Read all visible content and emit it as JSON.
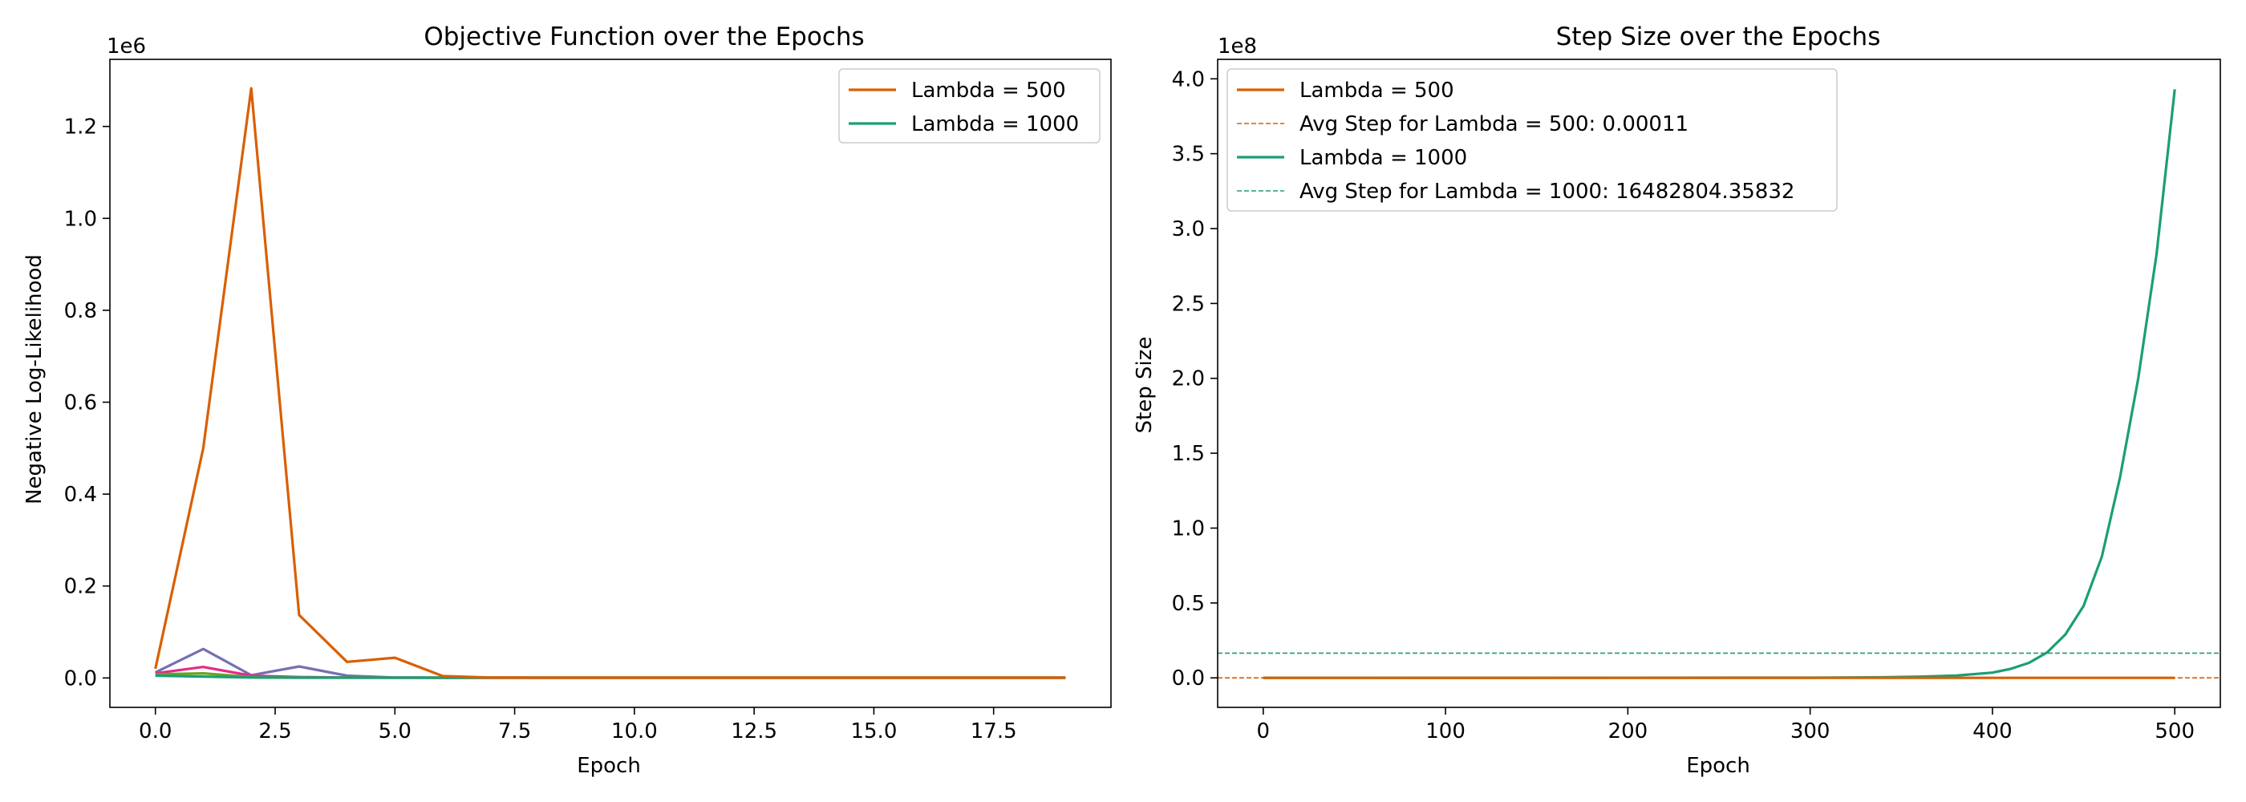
{
  "chart_data": [
    {
      "type": "line",
      "title": "Objective Function over the Epochs",
      "xlabel": "Epoch",
      "ylabel": "Negative Log-Likelihood",
      "xlim": [
        -0.95,
        19.95
      ],
      "ylim": [
        -64000,
        1346000
      ],
      "y_offset_label": "1e6",
      "xticks": [
        0,
        2.5,
        5,
        7.5,
        10,
        12.5,
        15,
        17.5
      ],
      "xtick_labels": [
        "0.0",
        "2.5",
        "5.0",
        "7.5",
        "10.0",
        "12.5",
        "15.0",
        "17.5"
      ],
      "yticks": [
        0,
        200000,
        400000,
        600000,
        800000,
        1000000,
        1200000
      ],
      "ytick_labels": [
        "0.0",
        "0.2",
        "0.4",
        "0.6",
        "0.8",
        "1.0",
        "1.2"
      ],
      "legend_position": "top-right",
      "x": [
        0,
        1,
        2,
        3,
        4,
        5,
        6,
        7,
        8,
        9,
        10,
        11,
        12,
        13,
        14,
        15,
        16,
        17,
        18,
        19
      ],
      "series": [
        {
          "name": "Lambda = 500",
          "color": "#d95f02",
          "in_legend": true,
          "values": [
            20000,
            500000,
            1283000,
            137000,
            35000,
            44000,
            4000,
            1000,
            500,
            500,
            500,
            500,
            500,
            500,
            500,
            500,
            500,
            500,
            500,
            500
          ]
        },
        {
          "name": "Lambda = 1000",
          "color": "#1b9e77",
          "in_legend": true,
          "values": [
            5000,
            3000,
            1000,
            500,
            500,
            500,
            500,
            500,
            500,
            500,
            500,
            500,
            500,
            500,
            500,
            500,
            500,
            500,
            500,
            500
          ]
        },
        {
          "color": "#66a61e",
          "in_legend": false,
          "values": [
            8000,
            10000,
            2000,
            1000,
            500,
            500,
            500,
            500,
            500,
            500,
            500,
            500,
            500,
            500,
            500,
            500,
            500,
            500,
            500,
            500
          ]
        },
        {
          "color": "#e7298a",
          "in_legend": false,
          "values": [
            10000,
            24000,
            5000,
            2000,
            1000,
            500,
            500,
            500,
            500,
            500,
            500,
            500,
            500,
            500,
            500,
            500,
            500,
            500,
            500,
            500
          ]
        },
        {
          "color": "#7570b3",
          "in_legend": false,
          "values": [
            12000,
            63000,
            6000,
            25000,
            5000,
            1000,
            500,
            500,
            500,
            500,
            500,
            500,
            500,
            500,
            500,
            500,
            500,
            500,
            500,
            500
          ]
        }
      ]
    },
    {
      "type": "line",
      "title": "Step Size over the Epochs",
      "xlabel": "Epoch",
      "ylabel": "Step Size",
      "xlim": [
        -25,
        525
      ],
      "ylim": [
        -19700000,
        413000000
      ],
      "y_offset_label": "1e8",
      "xticks": [
        0,
        100,
        200,
        300,
        400,
        500
      ],
      "xtick_labels": [
        "0",
        "100",
        "200",
        "300",
        "400",
        "500"
      ],
      "yticks": [
        0,
        50000000,
        100000000,
        150000000,
        200000000,
        250000000,
        300000000,
        350000000,
        400000000
      ],
      "ytick_labels": [
        "0.0",
        "0.5",
        "1.0",
        "1.5",
        "2.0",
        "2.5",
        "3.0",
        "3.5",
        "4.0"
      ],
      "legend_position": "top-left",
      "legend": [
        {
          "label": "Lambda = 500",
          "color": "#d95f02",
          "style": "solid"
        },
        {
          "label": "Avg Step for Lambda = 500: 0.00011",
          "color": "#d95f02",
          "style": "dashed"
        },
        {
          "label": "Lambda = 1000",
          "color": "#1b9e77",
          "style": "solid"
        },
        {
          "label": "Avg Step for Lambda = 1000: 16482804.35832",
          "color": "#1b9e77",
          "style": "dashed"
        }
      ],
      "series": [
        {
          "name": "Lambda = 500",
          "color": "#d95f02",
          "x": [
            0,
            100,
            200,
            300,
            400,
            500
          ],
          "values": [
            0,
            0,
            0,
            0,
            0,
            0
          ]
        },
        {
          "name": "Lambda = 1000",
          "color": "#1b9e77",
          "x": [
            0,
            300,
            340,
            360,
            380,
            400,
            410,
            420,
            430,
            440,
            450,
            460,
            470,
            480,
            490,
            500
          ],
          "values": [
            0,
            100000,
            400000,
            800000,
            1500000,
            3500000,
            6000000,
            10000000,
            17000000,
            29000000,
            48000000,
            81000000,
            134000000,
            200000000,
            283000000,
            393000000
          ]
        }
      ],
      "hlines": [
        {
          "name": "Avg Step for Lambda = 500: 0.00011",
          "y": 0.00011,
          "color": "#d95f02"
        },
        {
          "name": "Avg Step for Lambda = 1000: 16482804.35832",
          "y": 16482804.35832,
          "color": "#1b9e77"
        }
      ]
    }
  ]
}
